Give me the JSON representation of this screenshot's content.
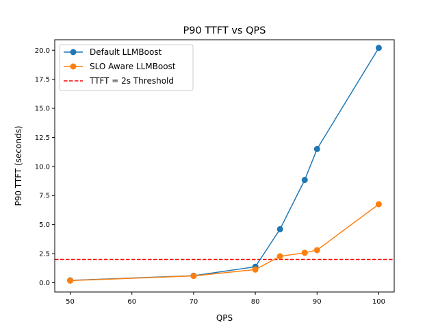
{
  "chart_data": {
    "type": "line",
    "title": "P90 TTFT vs QPS",
    "xlabel": "QPS",
    "ylabel": "P90 TTFT (seconds)",
    "xlim": [
      47.5,
      102.5
    ],
    "ylim": [
      -0.8,
      20.9
    ],
    "xticks": [
      50,
      60,
      70,
      80,
      90,
      100
    ],
    "xtick_labels": [
      "50",
      "60",
      "70",
      "80",
      "90",
      "100"
    ],
    "yticks": [
      0,
      2.5,
      5,
      7.5,
      10,
      12.5,
      15,
      17.5,
      20
    ],
    "ytick_labels": [
      "0.0",
      "2.5",
      "5.0",
      "7.5",
      "10.0",
      "12.5",
      "15.0",
      "17.5",
      "20.0"
    ],
    "grid": false,
    "legend_placement": "top-left",
    "series": [
      {
        "name": "Default LLMBoost",
        "color": "#1f77b4",
        "marker": "circle",
        "x": [
          50,
          70,
          80,
          84,
          88,
          90,
          100
        ],
        "y": [
          0.2,
          0.6,
          1.37,
          4.6,
          8.84,
          11.5,
          20.2
        ]
      },
      {
        "name": "SLO Aware LLMBoost",
        "color": "#ff7f0e",
        "marker": "circle",
        "x": [
          50,
          70,
          80,
          84,
          88,
          90,
          100
        ],
        "y": [
          0.18,
          0.58,
          1.13,
          2.27,
          2.57,
          2.8,
          6.75
        ]
      }
    ],
    "hlines": [
      {
        "name": "TTFT = 2s Threshold",
        "y": 2,
        "color": "#ff0000",
        "style": "dashed"
      }
    ]
  }
}
